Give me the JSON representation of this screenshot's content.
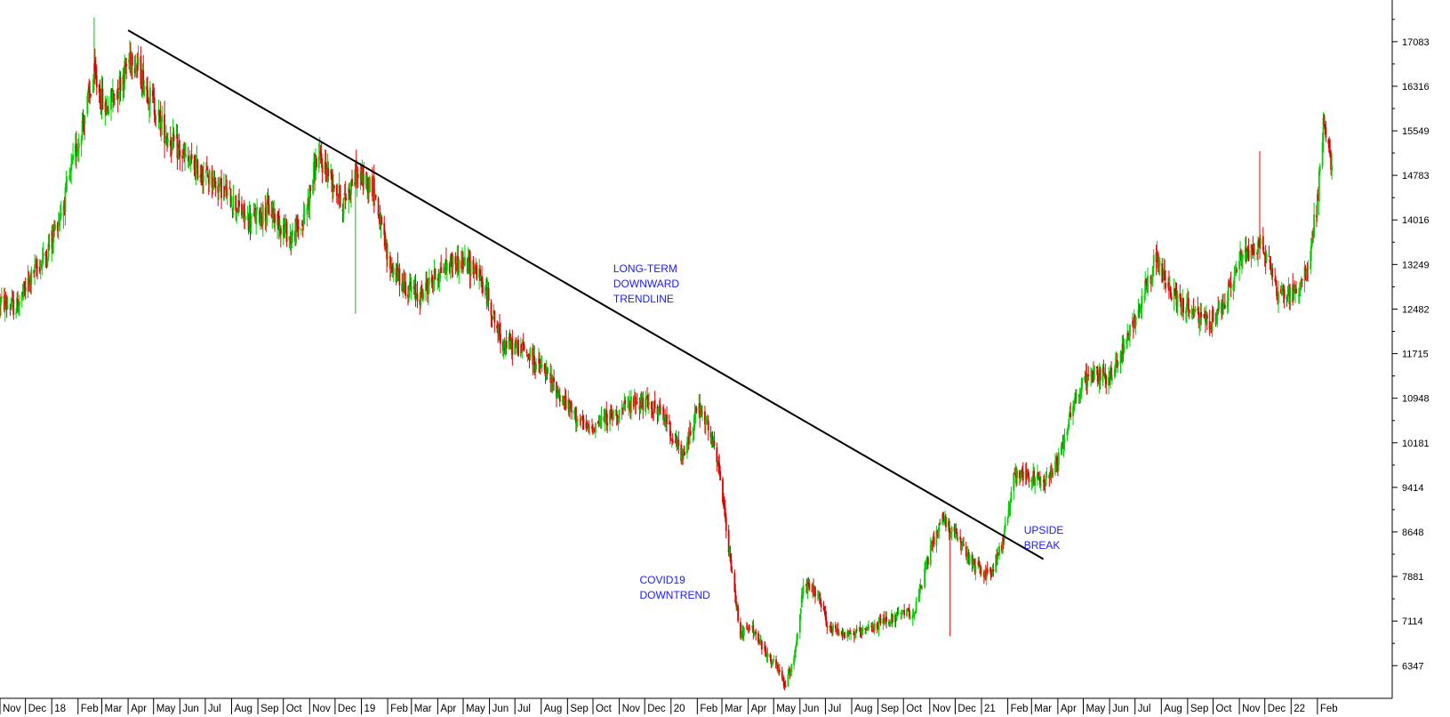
{
  "chart_data": {
    "type": "candlestick",
    "title": "",
    "xlabel": "",
    "ylabel": "",
    "x_range": [
      "2017-11-01",
      "2022-02-20"
    ],
    "ylim": [
      5800,
      17800
    ],
    "grid": false,
    "y_axis_position": "right",
    "y_ticks": [
      "17083",
      "16316",
      "15549",
      "14783",
      "14016",
      "13249",
      "12482",
      "11715",
      "10948",
      "10181",
      "9414",
      "8648",
      "7881",
      "7114",
      "6347"
    ],
    "x_tick_labels": [
      "Nov",
      "Dec",
      "18",
      "Feb",
      "Mar",
      "Apr",
      "May",
      "Jun",
      "Jul",
      "Aug",
      "Sep",
      "Oct",
      "Nov",
      "Dec",
      "19",
      "Feb",
      "Mar",
      "Apr",
      "May",
      "Jun",
      "Jul",
      "Aug",
      "Sep",
      "Oct",
      "Nov",
      "Dec",
      "20",
      "Feb",
      "Mar",
      "Apr",
      "May",
      "Jun",
      "Jul",
      "Aug",
      "Sep",
      "Oct",
      "Nov",
      "Dec",
      "21",
      "Feb",
      "Mar",
      "Apr",
      "May",
      "Jun",
      "Jul",
      "Aug",
      "Sep",
      "Oct",
      "Nov",
      "Dec",
      "22",
      "Feb"
    ],
    "colors": {
      "up": "#00cc00",
      "down": "#dd0000",
      "trendline": "#000000",
      "annotation": "#1a1aff",
      "axis": "#000000"
    },
    "price_path": [
      {
        "date": "2017-11-01",
        "value": 12600
      },
      {
        "date": "2017-11-20",
        "value": 12500
      },
      {
        "date": "2017-12-10",
        "value": 13100
      },
      {
        "date": "2017-12-25",
        "value": 13400
      },
      {
        "date": "2018-01-15",
        "value": 14300
      },
      {
        "date": "2018-02-05",
        "value": 15600
      },
      {
        "date": "2018-02-20",
        "value": 16500
      },
      {
        "date": "2018-03-05",
        "value": 15900
      },
      {
        "date": "2018-03-20",
        "value": 16300
      },
      {
        "date": "2018-04-05",
        "value": 16900
      },
      {
        "date": "2018-04-25",
        "value": 16200
      },
      {
        "date": "2018-05-15",
        "value": 15500
      },
      {
        "date": "2018-06-10",
        "value": 15000
      },
      {
        "date": "2018-07-01",
        "value": 14800
      },
      {
        "date": "2018-07-25",
        "value": 14500
      },
      {
        "date": "2018-08-20",
        "value": 14000
      },
      {
        "date": "2018-09-15",
        "value": 14200
      },
      {
        "date": "2018-10-10",
        "value": 13700
      },
      {
        "date": "2018-10-25",
        "value": 14000
      },
      {
        "date": "2018-11-10",
        "value": 15100
      },
      {
        "date": "2018-11-25",
        "value": 14800
      },
      {
        "date": "2018-12-10",
        "value": 14300
      },
      {
        "date": "2018-12-25",
        "value": 14800
      },
      {
        "date": "2019-01-15",
        "value": 14600
      },
      {
        "date": "2019-02-01",
        "value": 13300
      },
      {
        "date": "2019-02-20",
        "value": 12900
      },
      {
        "date": "2019-03-10",
        "value": 12700
      },
      {
        "date": "2019-04-01",
        "value": 13100
      },
      {
        "date": "2019-04-20",
        "value": 13300
      },
      {
        "date": "2019-05-15",
        "value": 13200
      },
      {
        "date": "2019-06-01",
        "value": 12600
      },
      {
        "date": "2019-06-15",
        "value": 11900
      },
      {
        "date": "2019-07-10",
        "value": 11800
      },
      {
        "date": "2019-08-05",
        "value": 11400
      },
      {
        "date": "2019-09-01",
        "value": 10800
      },
      {
        "date": "2019-09-25",
        "value": 10400
      },
      {
        "date": "2019-10-15",
        "value": 10600
      },
      {
        "date": "2019-11-01",
        "value": 10700
      },
      {
        "date": "2019-11-20",
        "value": 10900
      },
      {
        "date": "2019-12-10",
        "value": 10800
      },
      {
        "date": "2019-12-25",
        "value": 10600
      },
      {
        "date": "2020-01-15",
        "value": 9900
      },
      {
        "date": "2020-02-01",
        "value": 10800
      },
      {
        "date": "2020-02-15",
        "value": 10400
      },
      {
        "date": "2020-02-28",
        "value": 9600
      },
      {
        "date": "2020-03-10",
        "value": 8200
      },
      {
        "date": "2020-03-23",
        "value": 6900
      },
      {
        "date": "2020-04-05",
        "value": 7000
      },
      {
        "date": "2020-04-20",
        "value": 6600
      },
      {
        "date": "2020-05-05",
        "value": 6300
      },
      {
        "date": "2020-05-15",
        "value": 6000
      },
      {
        "date": "2020-05-25",
        "value": 6500
      },
      {
        "date": "2020-06-05",
        "value": 7700
      },
      {
        "date": "2020-06-20",
        "value": 7600
      },
      {
        "date": "2020-07-05",
        "value": 7000
      },
      {
        "date": "2020-07-25",
        "value": 6900
      },
      {
        "date": "2020-08-15",
        "value": 6900
      },
      {
        "date": "2020-09-05",
        "value": 7100
      },
      {
        "date": "2020-09-25",
        "value": 7200
      },
      {
        "date": "2020-10-15",
        "value": 7300
      },
      {
        "date": "2020-11-01",
        "value": 8300
      },
      {
        "date": "2020-11-15",
        "value": 8900
      },
      {
        "date": "2020-12-01",
        "value": 8600
      },
      {
        "date": "2020-12-20",
        "value": 8100
      },
      {
        "date": "2021-01-10",
        "value": 7900
      },
      {
        "date": "2021-01-25",
        "value": 8400
      },
      {
        "date": "2021-02-10",
        "value": 9700
      },
      {
        "date": "2021-02-25",
        "value": 9600
      },
      {
        "date": "2021-03-15",
        "value": 9500
      },
      {
        "date": "2021-04-01",
        "value": 9900
      },
      {
        "date": "2021-04-20",
        "value": 10900
      },
      {
        "date": "2021-05-10",
        "value": 11400
      },
      {
        "date": "2021-06-01",
        "value": 11300
      },
      {
        "date": "2021-06-20",
        "value": 11900
      },
      {
        "date": "2021-07-10",
        "value": 12700
      },
      {
        "date": "2021-07-25",
        "value": 13400
      },
      {
        "date": "2021-08-10",
        "value": 12800
      },
      {
        "date": "2021-09-01",
        "value": 12500
      },
      {
        "date": "2021-09-25",
        "value": 12200
      },
      {
        "date": "2021-10-15",
        "value": 12600
      },
      {
        "date": "2021-11-01",
        "value": 13300
      },
      {
        "date": "2021-11-20",
        "value": 13600
      },
      {
        "date": "2021-12-05",
        "value": 13400
      },
      {
        "date": "2021-12-15",
        "value": 12800
      },
      {
        "date": "2022-01-05",
        "value": 12700
      },
      {
        "date": "2022-01-20",
        "value": 13200
      },
      {
        "date": "2022-02-01",
        "value": 14300
      },
      {
        "date": "2022-02-08",
        "value": 15700
      },
      {
        "date": "2022-02-14",
        "value": 15200
      },
      {
        "date": "2022-02-20",
        "value": 14800
      }
    ],
    "spikes": [
      {
        "date": "2018-02-20",
        "high": 17500
      },
      {
        "date": "2018-04-01",
        "high": 17600
      },
      {
        "date": "2018-12-25",
        "low": 12400
      },
      {
        "date": "2020-11-25",
        "low": 6850
      },
      {
        "date": "2021-11-25",
        "high": 15200
      }
    ],
    "trendline": {
      "start": {
        "date": "2018-04-01",
        "value": 17280
      },
      "end": {
        "date": "2021-03-15",
        "value": 8180
      }
    },
    "annotations": [
      {
        "lines": [
          "LONG-TERM",
          "DOWNWARD",
          "TRENDLINE"
        ],
        "date": "2019-10-25",
        "value": 13300
      },
      {
        "lines": [
          "COVID19",
          "DOWNTREND"
        ],
        "date": "2019-11-25",
        "value": 7950
      },
      {
        "lines": [
          "UPSIDE",
          "BREAK"
        ],
        "date": "2021-02-20",
        "value": 8800
      }
    ]
  }
}
